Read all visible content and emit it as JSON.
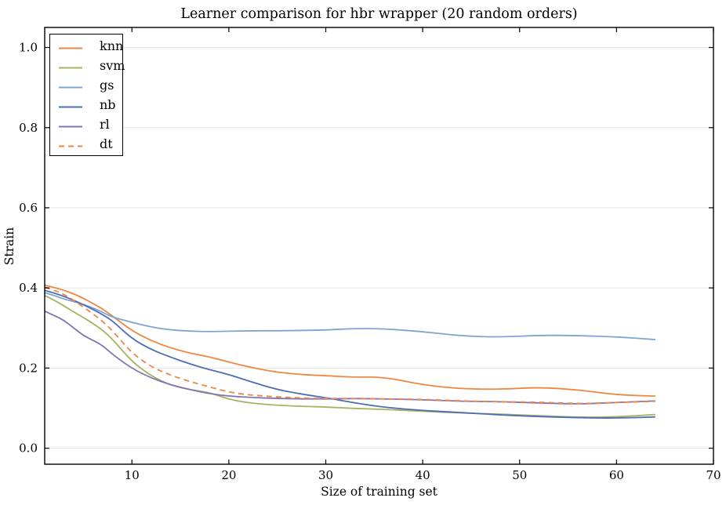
{
  "chart_data": {
    "type": "line",
    "title": "Learner comparison for hbr wrapper (20 random orders)",
    "xlabel": "Size of training set",
    "ylabel": "Strain",
    "xlim": [
      1,
      70
    ],
    "ylim": [
      -0.04,
      1.05
    ],
    "xticks": [
      10,
      20,
      30,
      40,
      50,
      60,
      70
    ],
    "yticks": [
      0.0,
      0.2,
      0.4,
      0.6,
      0.8,
      1.0
    ],
    "ytick_labels": [
      "0.0",
      "0.2",
      "0.4",
      "0.6",
      "0.8",
      "1.0"
    ],
    "grid": "horizontal",
    "legend_position": "upper-left",
    "x": [
      1,
      2,
      3,
      4,
      5,
      6,
      7,
      8,
      10,
      12,
      14,
      16,
      18,
      20,
      22,
      25,
      28,
      30,
      33,
      36,
      40,
      44,
      48,
      52,
      56,
      60,
      64
    ],
    "series": [
      {
        "name": "knn",
        "color": "#EE8742",
        "dash": false,
        "values": [
          0.407,
          0.401,
          0.394,
          0.385,
          0.374,
          0.361,
          0.347,
          0.33,
          0.293,
          0.268,
          0.25,
          0.237,
          0.228,
          0.215,
          0.203,
          0.189,
          0.183,
          0.181,
          0.177,
          0.178,
          0.158,
          0.148,
          0.147,
          0.152,
          0.146,
          0.133,
          0.13
        ]
      },
      {
        "name": "svm",
        "color": "#A7B162",
        "dash": false,
        "values": [
          0.381,
          0.369,
          0.355,
          0.34,
          0.326,
          0.311,
          0.294,
          0.272,
          0.216,
          0.18,
          0.157,
          0.146,
          0.139,
          0.122,
          0.113,
          0.107,
          0.104,
          0.103,
          0.099,
          0.097,
          0.092,
          0.088,
          0.085,
          0.081,
          0.077,
          0.078,
          0.084
        ]
      },
      {
        "name": "gs",
        "color": "#7CA5D2",
        "dash": false,
        "values": [
          0.388,
          0.381,
          0.372,
          0.366,
          0.359,
          0.35,
          0.339,
          0.327,
          0.314,
          0.302,
          0.295,
          0.292,
          0.291,
          0.292,
          0.293,
          0.293,
          0.294,
          0.295,
          0.299,
          0.298,
          0.291,
          0.28,
          0.277,
          0.282,
          0.281,
          0.278,
          0.271
        ]
      },
      {
        "name": "nb",
        "color": "#4D6DB5",
        "dash": false,
        "values": [
          0.394,
          0.387,
          0.379,
          0.369,
          0.358,
          0.346,
          0.333,
          0.318,
          0.273,
          0.246,
          0.227,
          0.21,
          0.196,
          0.184,
          0.168,
          0.146,
          0.133,
          0.126,
          0.113,
          0.102,
          0.094,
          0.089,
          0.083,
          0.079,
          0.076,
          0.075,
          0.078
        ]
      },
      {
        "name": "rl",
        "color": "#8273B4",
        "dash": false,
        "values": [
          0.342,
          0.331,
          0.319,
          0.3,
          0.281,
          0.269,
          0.256,
          0.234,
          0.199,
          0.175,
          0.158,
          0.146,
          0.136,
          0.13,
          0.127,
          0.124,
          0.123,
          0.123,
          0.124,
          0.123,
          0.121,
          0.117,
          0.116,
          0.113,
          0.11,
          0.114,
          0.118
        ]
      },
      {
        "name": "dt",
        "color": "#EE8742",
        "dash": true,
        "values": [
          0.402,
          0.394,
          0.384,
          0.369,
          0.352,
          0.335,
          0.316,
          0.293,
          0.237,
          0.203,
          0.182,
          0.166,
          0.153,
          0.14,
          0.133,
          0.128,
          0.125,
          0.124,
          0.124,
          0.123,
          0.122,
          0.118,
          0.116,
          0.115,
          0.111,
          0.114,
          0.117
        ]
      }
    ],
    "axis_color": "#000000",
    "grid_color": "#e4e4e4"
  }
}
